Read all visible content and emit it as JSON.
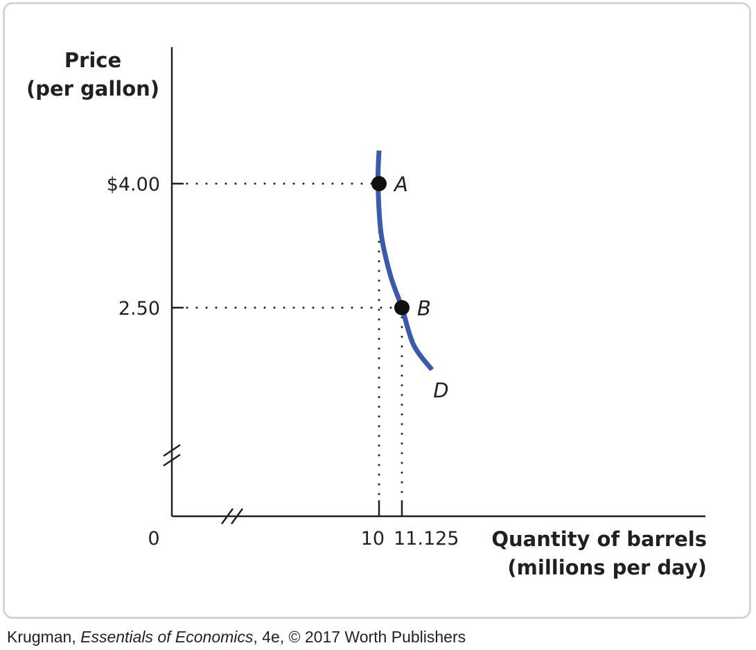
{
  "chart_data": {
    "type": "line",
    "ylabel_line1": "Price",
    "ylabel_line2": "(per gallon)",
    "xlabel_line1": "Quantity of barrels",
    "xlabel_line2": "(millions per day)",
    "origin_label": "0",
    "y_ticks": [
      {
        "value": 4.0,
        "label": "$4.00"
      },
      {
        "value": 2.5,
        "label": "2.50"
      }
    ],
    "x_ticks": [
      {
        "value": 10,
        "label": "10"
      },
      {
        "value": 11.125,
        "label": "11.125"
      }
    ],
    "axis_breaks": {
      "x": true,
      "y": true
    },
    "series": [
      {
        "name": "D",
        "color": "#3a5bab",
        "points": [
          {
            "x": 10.0,
            "y": 4.4
          },
          {
            "x": 9.95,
            "y": 4.0
          },
          {
            "x": 10.1,
            "y": 3.4
          },
          {
            "x": 10.55,
            "y": 2.9
          },
          {
            "x": 11.125,
            "y": 2.5
          },
          {
            "x": 11.7,
            "y": 2.05
          },
          {
            "x": 12.6,
            "y": 1.75
          }
        ]
      }
    ],
    "points": [
      {
        "label": "A",
        "x": 10,
        "y": 4.0
      },
      {
        "label": "B",
        "x": 11.125,
        "y": 2.5
      }
    ],
    "grid": false
  },
  "credit": {
    "author": "Krugman, ",
    "book": "Essentials of Economics",
    "rest": ", 4e, © 2017 Worth Publishers"
  }
}
